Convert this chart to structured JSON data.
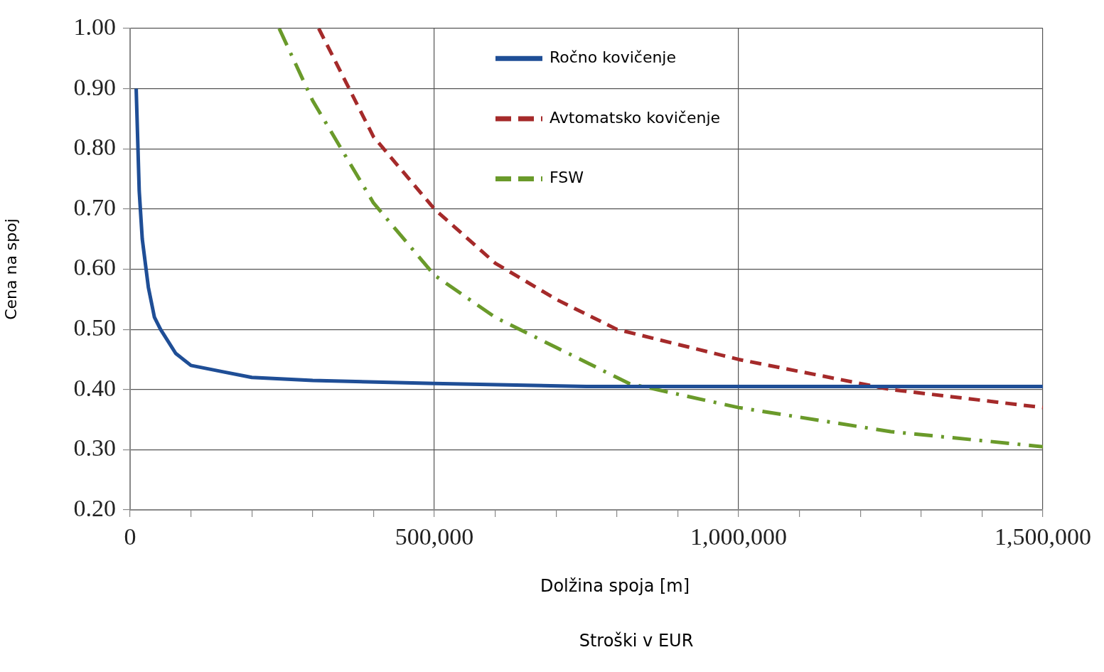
{
  "chart_data": {
    "type": "line",
    "xlabel": "Dolžina spoja [m]",
    "ylabel": "Cena na spoj",
    "annotations": [
      "Stroški v EUR"
    ],
    "xlim": [
      0,
      1500000
    ],
    "ylim": [
      0.2,
      1.0
    ],
    "xticks": [
      0,
      {
        "value": 100000,
        "label": null
      },
      {
        "value": 200000,
        "label": null
      },
      {
        "value": 300000,
        "label": null
      },
      {
        "value": 400000,
        "label": null
      },
      {
        "value": 500000,
        "label": "500,000"
      },
      {
        "value": 600000,
        "label": null
      },
      {
        "value": 700000,
        "label": null
      },
      {
        "value": 800000,
        "label": null
      },
      {
        "value": 900000,
        "label": null
      },
      {
        "value": 1000000,
        "label": "1,000,000"
      },
      {
        "value": 1100000,
        "label": null
      },
      {
        "value": 1200000,
        "label": null
      },
      {
        "value": 1300000,
        "label": null
      },
      {
        "value": 1400000,
        "label": null
      },
      {
        "value": 1500000,
        "label": "1,500,000"
      }
    ],
    "yticks": [
      {
        "value": 0.2,
        "label": "0.20"
      },
      {
        "value": 0.3,
        "label": "0.30"
      },
      {
        "value": 0.4,
        "label": "0.40"
      },
      {
        "value": 0.5,
        "label": "0.50"
      },
      {
        "value": 0.6,
        "label": "0.60"
      },
      {
        "value": 0.7,
        "label": "0.70"
      },
      {
        "value": 0.8,
        "label": "0.80"
      },
      {
        "value": 0.9,
        "label": "0.90"
      },
      {
        "value": 1.0,
        "label": "1.00"
      }
    ],
    "grid": true,
    "legend": "top right",
    "marker": "none",
    "series": [
      {
        "name": "Ročno kovičenje",
        "color": "#1f4e96",
        "line_style": "solid",
        "x": [
          10000,
          15000,
          20000,
          30000,
          40000,
          50000,
          75000,
          100000,
          150000,
          200000,
          300000,
          500000,
          750000,
          1000000,
          1500000
        ],
        "values": [
          0.9,
          0.73,
          0.65,
          0.57,
          0.52,
          0.5,
          0.46,
          0.44,
          0.43,
          0.42,
          0.415,
          0.41,
          0.405,
          0.405,
          0.405
        ]
      },
      {
        "name": "Avtomatsko kovičenje",
        "color": "#a52a2a",
        "line_style": "dashed",
        "x": [
          310000,
          400000,
          500000,
          600000,
          700000,
          800000,
          1000000,
          1250000,
          1500000
        ],
        "values": [
          1.0,
          0.82,
          0.7,
          0.61,
          0.55,
          0.5,
          0.45,
          0.4,
          0.37
        ]
      },
      {
        "name": "FSW",
        "color": "#6a9a2a",
        "line_style": "dashdot",
        "x": [
          245000,
          300000,
          400000,
          500000,
          600000,
          700000,
          820000,
          1000000,
          1250000,
          1500000
        ],
        "values": [
          1.0,
          0.88,
          0.71,
          0.59,
          0.52,
          0.47,
          0.41,
          0.37,
          0.33,
          0.305
        ]
      }
    ]
  }
}
